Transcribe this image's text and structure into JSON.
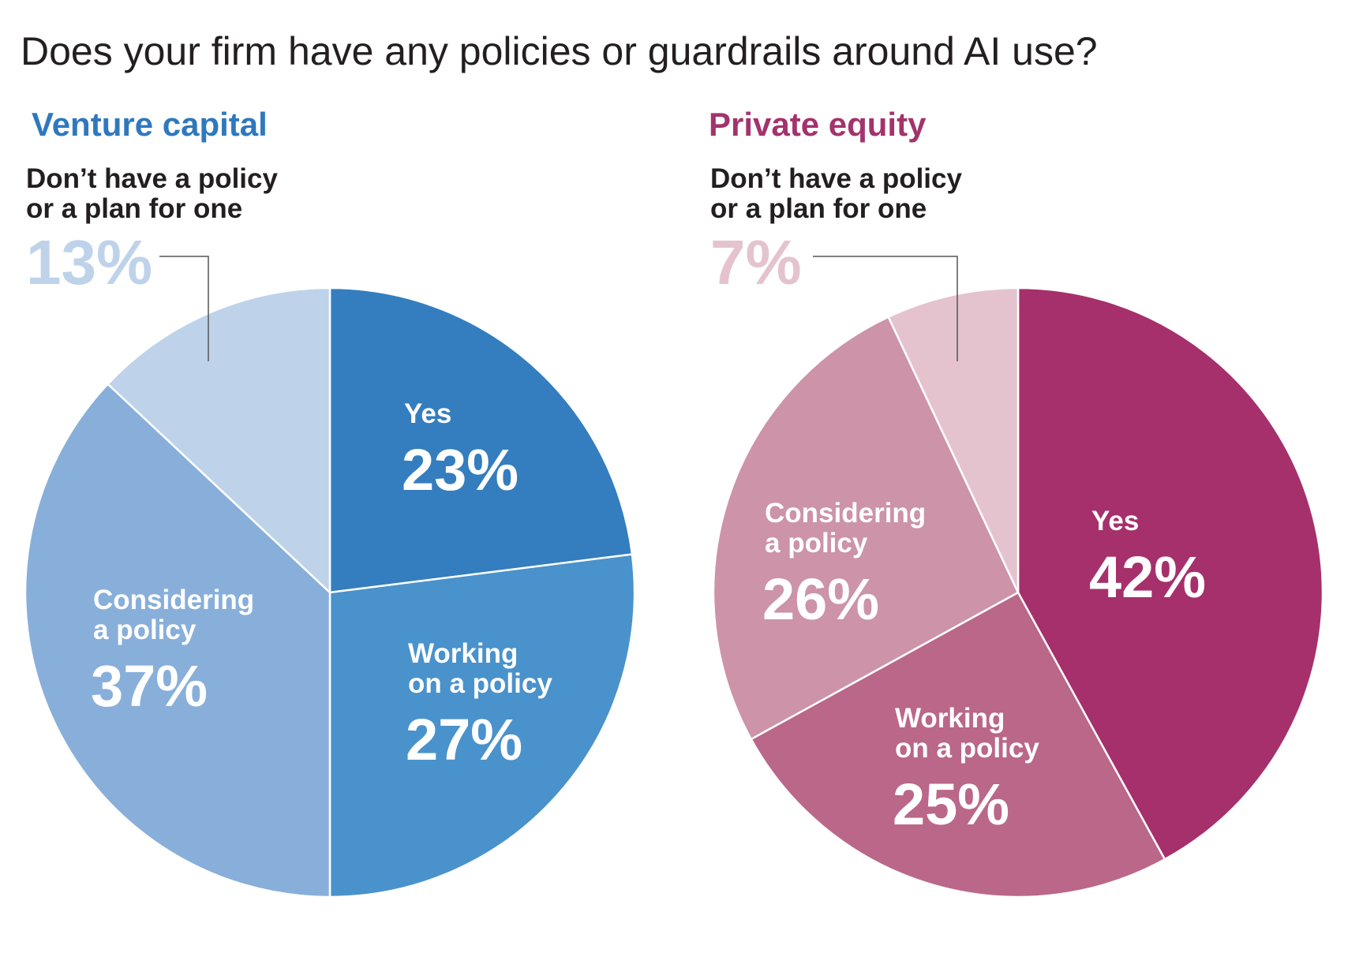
{
  "title": "Does your firm have any policies or guardrails around AI use?",
  "chart_data": [
    {
      "type": "pie",
      "title": "Venture capital",
      "title_color": "#2f78bd",
      "slices": [
        {
          "label_lines": [
            "Yes"
          ],
          "value": 23,
          "value_text": "23%",
          "color": "#347dbf"
        },
        {
          "label_lines": [
            "Working",
            "on a policy"
          ],
          "value": 27,
          "value_text": "27%",
          "color": "#4a92cb"
        },
        {
          "label_lines": [
            "Considering",
            "a policy"
          ],
          "value": 37,
          "value_text": "37%",
          "color": "#88afda"
        },
        {
          "label_lines": [
            "Don’t have a policy",
            "or a plan for one"
          ],
          "value": 13,
          "value_text": "13%",
          "color": "#bed3ea",
          "callout": true
        }
      ]
    },
    {
      "type": "pie",
      "title": "Private equity",
      "title_color": "#a3336c",
      "slices": [
        {
          "label_lines": [
            "Yes"
          ],
          "value": 42,
          "value_text": "42%",
          "color": "#a6306b"
        },
        {
          "label_lines": [
            "Working",
            "on a policy"
          ],
          "value": 25,
          "value_text": "25%",
          "color": "#ba6789"
        },
        {
          "label_lines": [
            "Considering",
            "a policy"
          ],
          "value": 26,
          "value_text": "26%",
          "color": "#cc93a9"
        },
        {
          "label_lines": [
            "Don’t have a policy",
            "or a plan for one"
          ],
          "value": 7,
          "value_text": "7%",
          "color": "#e4c3cf",
          "callout": true
        }
      ]
    }
  ]
}
